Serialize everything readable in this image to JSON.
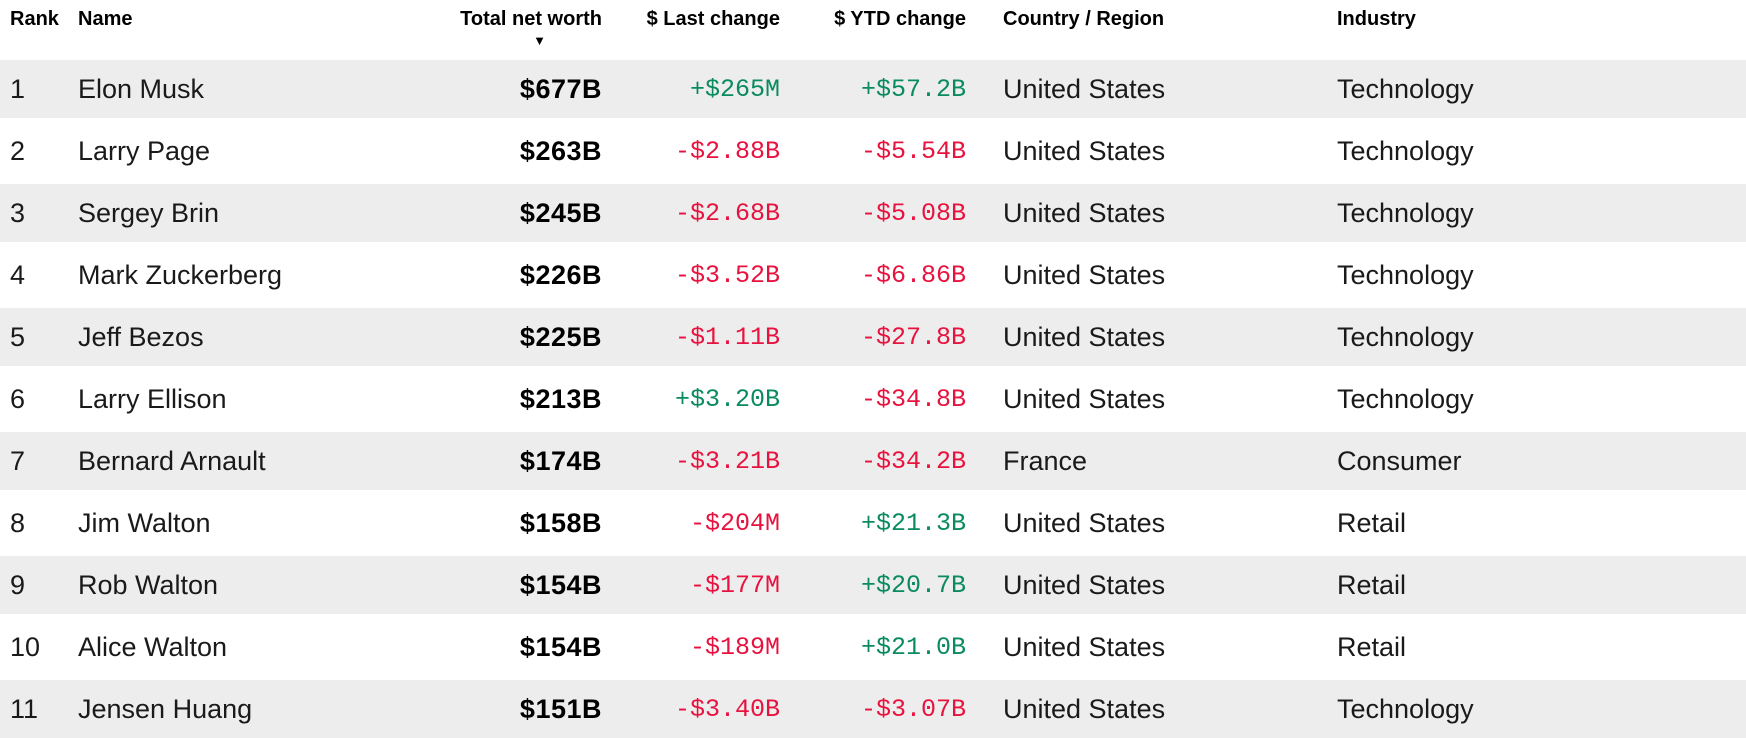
{
  "table": {
    "columns": [
      {
        "label": "Rank"
      },
      {
        "label": "Name"
      },
      {
        "label": "Total net worth",
        "sorted": "desc"
      },
      {
        "label": "$ Last change"
      },
      {
        "label": "$ YTD change"
      },
      {
        "label": "Country / Region"
      },
      {
        "label": "Industry"
      }
    ],
    "sort_icon": "▼",
    "rows": [
      {
        "rank": "1",
        "name": "Elon Musk",
        "net_worth": "$677B",
        "last_change": "+$265M",
        "ytd_change": "+$57.2B",
        "country": "United States",
        "industry": "Technology"
      },
      {
        "rank": "2",
        "name": "Larry Page",
        "net_worth": "$263B",
        "last_change": "-$2.88B",
        "ytd_change": "-$5.54B",
        "country": "United States",
        "industry": "Technology"
      },
      {
        "rank": "3",
        "name": "Sergey Brin",
        "net_worth": "$245B",
        "last_change": "-$2.68B",
        "ytd_change": "-$5.08B",
        "country": "United States",
        "industry": "Technology"
      },
      {
        "rank": "4",
        "name": "Mark Zuckerberg",
        "net_worth": "$226B",
        "last_change": "-$3.52B",
        "ytd_change": "-$6.86B",
        "country": "United States",
        "industry": "Technology"
      },
      {
        "rank": "5",
        "name": "Jeff Bezos",
        "net_worth": "$225B",
        "last_change": "-$1.11B",
        "ytd_change": "-$27.8B",
        "country": "United States",
        "industry": "Technology"
      },
      {
        "rank": "6",
        "name": "Larry Ellison",
        "net_worth": "$213B",
        "last_change": "+$3.20B",
        "ytd_change": "-$34.8B",
        "country": "United States",
        "industry": "Technology"
      },
      {
        "rank": "7",
        "name": "Bernard Arnault",
        "net_worth": "$174B",
        "last_change": "-$3.21B",
        "ytd_change": "-$34.2B",
        "country": "France",
        "industry": "Consumer"
      },
      {
        "rank": "8",
        "name": "Jim Walton",
        "net_worth": "$158B",
        "last_change": "-$204M",
        "ytd_change": "+$21.3B",
        "country": "United States",
        "industry": "Retail"
      },
      {
        "rank": "9",
        "name": "Rob Walton",
        "net_worth": "$154B",
        "last_change": "-$177M",
        "ytd_change": "+$20.7B",
        "country": "United States",
        "industry": "Retail"
      },
      {
        "rank": "10",
        "name": "Alice Walton",
        "net_worth": "$154B",
        "last_change": "-$189M",
        "ytd_change": "+$21.0B",
        "country": "United States",
        "industry": "Retail"
      },
      {
        "rank": "11",
        "name": "Jensen Huang",
        "net_worth": "$151B",
        "last_change": "-$3.40B",
        "ytd_change": "-$3.07B",
        "country": "United States",
        "industry": "Technology"
      }
    ]
  },
  "colors": {
    "positive": "#0a8a60",
    "negative": "#e8123f",
    "stripe": "#ededed"
  }
}
